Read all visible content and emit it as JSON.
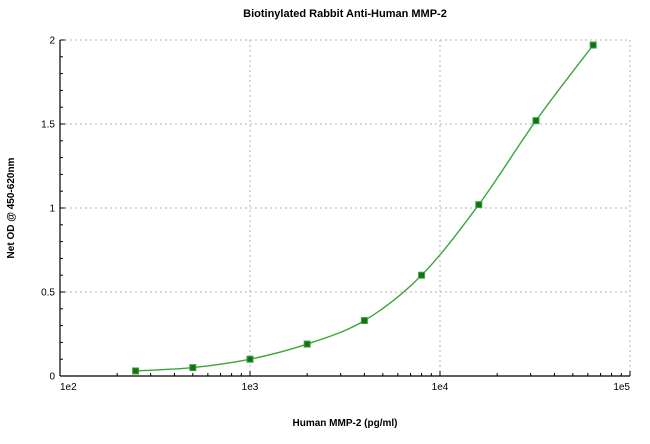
{
  "chart_data": {
    "type": "line",
    "title": "Biotinylated Rabbit Anti-Human MMP-2",
    "xlabel": "Human MMP-2 (pg/ml)",
    "ylabel": "Net OD @ 450-620nm",
    "x_scale": "log",
    "xlim": [
      100,
      100000
    ],
    "ylim": [
      0,
      2
    ],
    "x_ticks": [
      100,
      1000,
      10000,
      100000
    ],
    "x_tick_labels": [
      "1e2",
      "1e3",
      "1e4",
      "1e5"
    ],
    "y_ticks": [
      0,
      0.5,
      1,
      1.5,
      2
    ],
    "y_tick_labels": [
      "0",
      "0.5",
      "1",
      "1.5",
      "2"
    ],
    "grid": true,
    "legend": false,
    "series": [
      {
        "name": "Biotinylated Rabbit Anti-Human MMP-2",
        "color": "#3aa63a",
        "marker": "square",
        "marker_color": "#176e17",
        "x": [
          250,
          500,
          1000,
          2000,
          4000,
          8000,
          16000,
          32000,
          64000
        ],
        "y": [
          0.03,
          0.05,
          0.1,
          0.19,
          0.33,
          0.6,
          1.02,
          1.52,
          1.97
        ]
      }
    ],
    "colors": {
      "axis": "#000000",
      "gridline": "#b3b3b3",
      "background": "#ffffff"
    }
  }
}
